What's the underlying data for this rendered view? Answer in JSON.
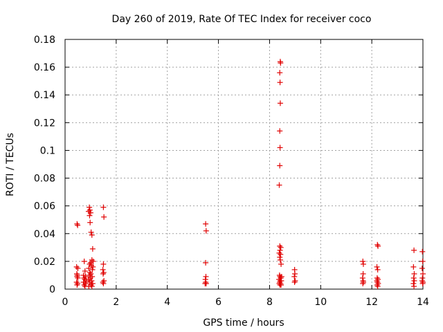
{
  "chart_data": {
    "type": "scatter",
    "title": "Day 260 of 2019, Rate Of TEC Index for receiver coco",
    "xlabel": "GPS time / hours",
    "ylabel": "ROTI / TECUs",
    "xlim": [
      0,
      14
    ],
    "ylim": [
      0,
      0.18
    ],
    "x_ticks": [
      0,
      2,
      4,
      6,
      8,
      10,
      12,
      14
    ],
    "x_tick_labels": [
      "0",
      "2",
      "4",
      "6",
      "8",
      "10",
      "12",
      "14"
    ],
    "y_ticks": [
      0,
      0.02,
      0.04,
      0.06,
      0.08,
      0.1,
      0.12,
      0.14,
      0.16,
      0.18
    ],
    "y_tick_labels": [
      "0",
      "0.02",
      "0.04",
      "0.06",
      "0.08",
      "0.1",
      "0.12",
      "0.14",
      "0.16",
      "0.18"
    ],
    "grid": true,
    "marker": "+",
    "color": "#e00000",
    "series": [
      {
        "name": "ROTI",
        "points": [
          [
            0.47,
            0.047
          ],
          [
            0.49,
            0.046
          ],
          [
            0.45,
            0.016
          ],
          [
            0.5,
            0.015
          ],
          [
            0.46,
            0.011
          ],
          [
            0.48,
            0.01
          ],
          [
            0.47,
            0.009
          ],
          [
            0.5,
            0.008
          ],
          [
            0.45,
            0.005
          ],
          [
            0.49,
            0.004
          ],
          [
            0.47,
            0.003
          ],
          [
            0.75,
            0.02
          ],
          [
            0.78,
            0.013
          ],
          [
            0.72,
            0.01
          ],
          [
            0.8,
            0.009
          ],
          [
            0.74,
            0.008
          ],
          [
            0.77,
            0.007
          ],
          [
            0.72,
            0.005
          ],
          [
            0.8,
            0.004
          ],
          [
            0.75,
            0.003
          ],
          [
            0.78,
            0.002
          ],
          [
            0.83,
            0.006
          ],
          [
            0.95,
            0.059
          ],
          [
            0.97,
            0.057
          ],
          [
            0.92,
            0.056
          ],
          [
            1.0,
            0.055
          ],
          [
            0.96,
            0.053
          ],
          [
            0.98,
            0.048
          ],
          [
            1.02,
            0.041
          ],
          [
            1.05,
            0.039
          ],
          [
            1.08,
            0.029
          ],
          [
            1.05,
            0.021
          ],
          [
            1.0,
            0.019
          ],
          [
            0.96,
            0.018
          ],
          [
            1.03,
            0.017
          ],
          [
            0.93,
            0.015
          ],
          [
            1.07,
            0.014
          ],
          [
            0.97,
            0.012
          ],
          [
            1.01,
            0.011
          ],
          [
            0.94,
            0.01
          ],
          [
            1.06,
            0.009
          ],
          [
            0.99,
            0.008
          ],
          [
            0.92,
            0.007
          ],
          [
            1.04,
            0.006
          ],
          [
            0.96,
            0.005
          ],
          [
            1.08,
            0.004
          ],
          [
            1.01,
            0.003
          ],
          [
            0.93,
            0.002
          ],
          [
            1.05,
            0.002
          ],
          [
            1.1,
            0.02
          ],
          [
            1.09,
            0.016
          ],
          [
            1.5,
            0.059
          ],
          [
            1.52,
            0.052
          ],
          [
            1.5,
            0.018
          ],
          [
            1.48,
            0.014
          ],
          [
            1.51,
            0.012
          ],
          [
            1.49,
            0.011
          ],
          [
            1.52,
            0.006
          ],
          [
            1.5,
            0.004
          ],
          [
            1.48,
            0.005
          ],
          [
            5.5,
            0.047
          ],
          [
            5.52,
            0.042
          ],
          [
            5.5,
            0.019
          ],
          [
            5.51,
            0.009
          ],
          [
            5.49,
            0.007
          ],
          [
            5.5,
            0.005
          ],
          [
            5.52,
            0.004
          ],
          [
            5.48,
            0.004
          ],
          [
            8.42,
            0.164
          ],
          [
            8.43,
            0.163
          ],
          [
            8.4,
            0.156
          ],
          [
            8.41,
            0.149
          ],
          [
            8.42,
            0.134
          ],
          [
            8.4,
            0.114
          ],
          [
            8.41,
            0.102
          ],
          [
            8.4,
            0.089
          ],
          [
            8.38,
            0.075
          ],
          [
            8.4,
            0.031
          ],
          [
            8.44,
            0.03
          ],
          [
            8.41,
            0.028
          ],
          [
            8.38,
            0.026
          ],
          [
            8.43,
            0.025
          ],
          [
            8.4,
            0.023
          ],
          [
            8.42,
            0.021
          ],
          [
            8.45,
            0.018
          ],
          [
            8.39,
            0.01
          ],
          [
            8.41,
            0.009
          ],
          [
            8.44,
            0.008
          ],
          [
            8.37,
            0.007
          ],
          [
            8.42,
            0.006
          ],
          [
            8.46,
            0.006
          ],
          [
            8.4,
            0.005
          ],
          [
            8.43,
            0.004
          ],
          [
            8.38,
            0.004
          ],
          [
            8.45,
            0.003
          ],
          [
            8.41,
            0.003
          ],
          [
            8.47,
            0.009
          ],
          [
            8.98,
            0.014
          ],
          [
            8.99,
            0.011
          ],
          [
            8.97,
            0.009
          ],
          [
            9.0,
            0.006
          ],
          [
            8.98,
            0.005
          ],
          [
            11.65,
            0.02
          ],
          [
            11.67,
            0.018
          ],
          [
            11.66,
            0.011
          ],
          [
            11.64,
            0.008
          ],
          [
            11.66,
            0.006
          ],
          [
            11.67,
            0.005
          ],
          [
            11.65,
            0.004
          ],
          [
            12.22,
            0.032
          ],
          [
            12.24,
            0.031
          ],
          [
            12.2,
            0.016
          ],
          [
            12.23,
            0.014
          ],
          [
            12.21,
            0.008
          ],
          [
            12.24,
            0.007
          ],
          [
            12.2,
            0.006
          ],
          [
            12.22,
            0.005
          ],
          [
            12.25,
            0.004
          ],
          [
            12.21,
            0.003
          ],
          [
            12.23,
            0.002
          ],
          [
            13.65,
            0.028
          ],
          [
            13.63,
            0.016
          ],
          [
            13.66,
            0.011
          ],
          [
            13.64,
            0.008
          ],
          [
            13.66,
            0.006
          ],
          [
            13.63,
            0.004
          ],
          [
            13.65,
            0.002
          ],
          [
            13.98,
            0.027
          ],
          [
            13.99,
            0.02
          ],
          [
            13.97,
            0.015
          ],
          [
            14.0,
            0.011
          ],
          [
            13.98,
            0.008
          ],
          [
            13.97,
            0.006
          ],
          [
            14.0,
            0.005
          ],
          [
            13.99,
            0.004
          ]
        ]
      }
    ]
  }
}
